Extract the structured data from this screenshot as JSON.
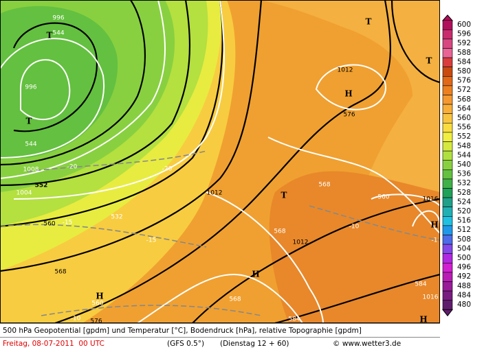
{
  "map": {
    "labels": [
      "996",
      "544",
      "T",
      "996",
      "T",
      "544",
      "1008",
      "1004",
      "552",
      "-20",
      "-20",
      "1012",
      "560",
      "-15",
      "532",
      "-15",
      "568",
      "H",
      "560",
      "576",
      "-10",
      "1012",
      "H",
      "576",
      "T",
      "T",
      "568",
      "T",
      "568",
      "1012",
      "-10",
      "560",
      "1016",
      "H",
      "-1",
      "H",
      "568",
      "584",
      "1016",
      "584",
      "H"
    ]
  },
  "legend": {
    "levels": [
      600,
      596,
      592,
      588,
      584,
      580,
      576,
      572,
      568,
      564,
      560,
      556,
      552,
      548,
      544,
      540,
      536,
      532,
      528,
      524,
      520,
      516,
      512,
      508,
      504,
      500,
      496,
      492,
      488,
      484,
      480
    ],
    "colors": [
      "#b0105a",
      "#c82c6c",
      "#d84880",
      "#e86494",
      "#d83c3c",
      "#c84a10",
      "#e06818",
      "#ec8020",
      "#f49830",
      "#f8ae38",
      "#f8c440",
      "#f8dc40",
      "#f0ee40",
      "#d4e840",
      "#b0e040",
      "#88d040",
      "#64c040",
      "#40b048",
      "#20a058",
      "#20a088",
      "#20b0b4",
      "#20c0e0",
      "#2098e8",
      "#4c6ce8",
      "#8448e8",
      "#b028e0",
      "#d020d0",
      "#b81cb4",
      "#981c98",
      "#781c80",
      "#601c6c"
    ]
  },
  "footer": {
    "title": "500 hPa Geopotential [gpdm] und Temperatur [°C], Bodendruck [hPa], relative Topographie [gpdm]",
    "date": "Freitag, 08-07-2011  00 UTC",
    "model": "(GFS 0.5°)",
    "run": "(Dienstag 12 + 60)",
    "credit": "© www.wetter3.de"
  }
}
